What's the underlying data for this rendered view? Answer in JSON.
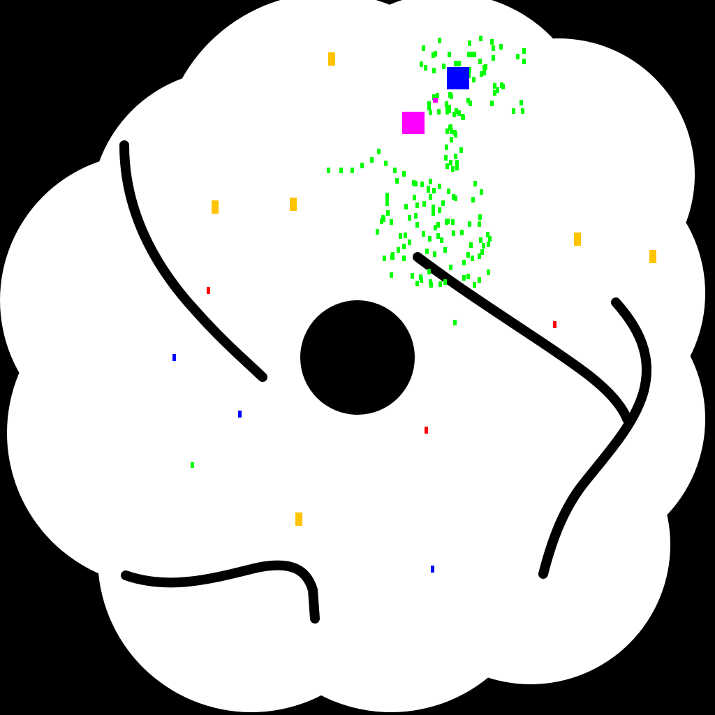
{
  "colors": {
    "void": "#000000",
    "floor": "#ffffff",
    "wall": "#000000",
    "player": "#0000ff",
    "rival": "#ff00ff",
    "food": "#00ff00",
    "gold": "#ffc300",
    "hazard": "#ff0000",
    "bonus": "#0000ff"
  },
  "icons": {
    "player": "square",
    "rival": "square",
    "food": "small-square",
    "gold": "bar",
    "hazard": "small-bar",
    "bonus": "small-bar"
  }
}
